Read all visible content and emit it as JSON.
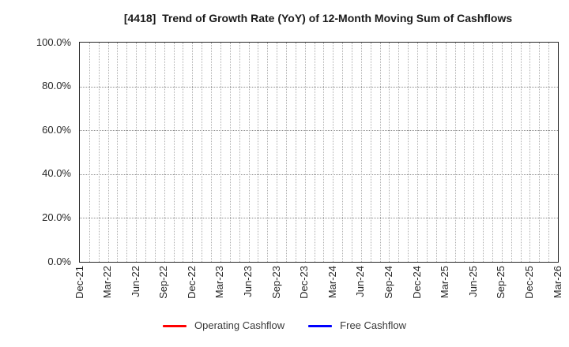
{
  "chart_data": {
    "type": "line",
    "title": "[4418]  Trend of Growth Rate (YoY) of 12-Month Moving Sum of Cashflows",
    "xlabel": "",
    "ylabel": "",
    "ylim": [
      0,
      100
    ],
    "grid": true,
    "legend_position": "bottom",
    "y_ticks": [
      {
        "value": 0,
        "label": "0.0%"
      },
      {
        "value": 20,
        "label": "20.0%"
      },
      {
        "value": 40,
        "label": "40.0%"
      },
      {
        "value": 60,
        "label": "60.0%"
      },
      {
        "value": 80,
        "label": "80.0%"
      },
      {
        "value": 100,
        "label": "100.0%"
      }
    ],
    "x_months_total": 51,
    "x_tick_step_months": 3,
    "x_tick_labels": [
      "Dec-21",
      "Mar-22",
      "Jun-22",
      "Sep-22",
      "Dec-22",
      "Mar-23",
      "Jun-23",
      "Sep-23",
      "Dec-23",
      "Mar-24",
      "Jun-24",
      "Sep-24",
      "Dec-24",
      "Mar-25",
      "Jun-25",
      "Sep-25",
      "Dec-25",
      "Mar-26"
    ],
    "series": [
      {
        "name": "Operating Cashflow",
        "color": "#ff0000",
        "values": []
      },
      {
        "name": "Free Cashflow",
        "color": "#0000ff",
        "values": []
      }
    ],
    "plotted_points_visible": false
  },
  "colors": {
    "background": "#ffffff",
    "plot_border": "#262626",
    "grid_horizontal": "#8c8c8c",
    "grid_vertical": "#b0b0b0",
    "tick_text": "#262626",
    "title_text": "#1a1a1a",
    "legend_text": "#3a3a3a"
  }
}
